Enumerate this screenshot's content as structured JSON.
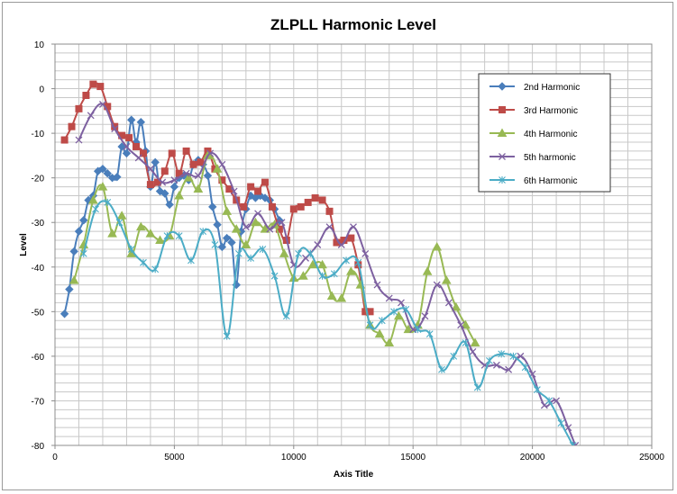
{
  "chart_data": {
    "type": "line",
    "title": "ZLPLL Harmonic Level",
    "xlabel": "Axis Title",
    "ylabel": "Level",
    "xlim": [
      0,
      25000
    ],
    "ylim": [
      -80,
      10
    ],
    "xticks": [
      0,
      5000,
      10000,
      15000,
      20000,
      25000
    ],
    "yticks": [
      10,
      0,
      -10,
      -20,
      -30,
      -40,
      -50,
      -60,
      -70,
      -80
    ],
    "grid": true,
    "smoothed": true,
    "legend_position": "top-right",
    "series": [
      {
        "name": "2nd Harmonic",
        "color": "#4a7ebb",
        "marker": "diamond",
        "x": [
          400,
          600,
          800,
          1000,
          1200,
          1400,
          1600,
          1800,
          2000,
          2200,
          2400,
          2600,
          2800,
          3000,
          3200,
          3400,
          3600,
          3800,
          4000,
          4200,
          4400,
          4600,
          4800,
          5000,
          5200,
          5400,
          5600,
          5800,
          6000,
          6200,
          6400,
          6600,
          6800,
          7000,
          7200,
          7400,
          7600,
          7800,
          8000,
          8200,
          8400,
          8600,
          8800,
          9000,
          9200,
          9400
        ],
        "y": [
          -50.5,
          -45,
          -36.5,
          -32,
          -29.5,
          -25,
          -24,
          -18.5,
          -18,
          -19,
          -20,
          -19.8,
          -13,
          -14.5,
          -7,
          -12,
          -7.5,
          -14,
          -22,
          -16.5,
          -23,
          -23.5,
          -26,
          -22,
          -20,
          -19.5,
          -20.5,
          -17,
          -16,
          -17,
          -19.5,
          -26.5,
          -30.5,
          -35.5,
          -33.5,
          -34.5,
          -44,
          -32,
          -27,
          -24,
          -24.5,
          -24,
          -24.5,
          -25,
          -27,
          -29.5
        ]
      },
      {
        "name": "3rd Harmonic",
        "color": "#be4b48",
        "marker": "square",
        "x": [
          400,
          700,
          1000,
          1300,
          1600,
          1900,
          2200,
          2500,
          2800,
          3100,
          3400,
          3700,
          4000,
          4300,
          4600,
          4900,
          5200,
          5500,
          5800,
          6100,
          6400,
          6700,
          7000,
          7300,
          7600,
          7900,
          8200,
          8500,
          8800,
          9100,
          9400,
          9700,
          10000,
          10300,
          10600,
          10900,
          11200,
          11500,
          11800,
          12100,
          12400,
          12700,
          13000,
          13200
        ],
        "y": [
          -11.5,
          -8.5,
          -4.5,
          -1.5,
          1,
          0.5,
          -4,
          -8.5,
          -10.5,
          -11,
          -13,
          -14.5,
          -21.5,
          -21,
          -18.5,
          -14.5,
          -19,
          -14,
          -17,
          -16.5,
          -14,
          -18,
          -20.5,
          -22.5,
          -25,
          -26.5,
          -22,
          -23,
          -21,
          -26.5,
          -31.5,
          -34,
          -27,
          -26.5,
          -25.5,
          -24.5,
          -25,
          -27.5,
          -34.5,
          -34,
          -33.5,
          -39.5,
          -50,
          -50
        ]
      },
      {
        "name": "4th Harmonic",
        "color": "#98b954",
        "marker": "triangle",
        "x": [
          800,
          1200,
          1600,
          2000,
          2400,
          2800,
          3200,
          3600,
          4000,
          4400,
          4800,
          5200,
          5600,
          6000,
          6400,
          6800,
          7200,
          7600,
          8000,
          8400,
          8800,
          9200,
          9600,
          10000,
          10400,
          10800,
          11200,
          11600,
          12000,
          12400,
          12800,
          13200,
          13600,
          14000,
          14400,
          14800,
          15200,
          15600,
          16000,
          16400,
          16800,
          17200,
          17600
        ],
        "y": [
          -43,
          -35,
          -25,
          -22,
          -32.5,
          -28.5,
          -37,
          -31,
          -32.5,
          -34,
          -33,
          -24,
          -20,
          -22.5,
          -15,
          -18,
          -27.5,
          -31.5,
          -35,
          -30,
          -31.5,
          -30.5,
          -37,
          -42.5,
          -42,
          -39.5,
          -39.5,
          -46.5,
          -47,
          -41,
          -44,
          -53,
          -55,
          -57,
          -51,
          -54,
          -53,
          -41,
          -35.5,
          -43,
          -49,
          -53,
          -57
        ]
      },
      {
        "name": "5th harmonic",
        "color": "#7d60a0",
        "marker": "x",
        "x": [
          1000,
          1500,
          2000,
          2500,
          3000,
          3500,
          4000,
          4500,
          5000,
          5500,
          6000,
          6500,
          7000,
          7500,
          8000,
          8500,
          9000,
          9500,
          10000,
          10500,
          11000,
          11500,
          12000,
          12500,
          13000,
          13500,
          14000,
          14500,
          15000,
          15500,
          16000,
          16500,
          17000,
          17500,
          18000,
          18500,
          19000,
          19500,
          20000,
          20500,
          21000,
          21500,
          21800
        ],
        "y": [
          -11.5,
          -6,
          -3.5,
          -9,
          -13,
          -15.5,
          -18,
          -21,
          -20.5,
          -19,
          -19.5,
          -14.5,
          -17,
          -23,
          -31,
          -28,
          -31.5,
          -30,
          -39.5,
          -38,
          -35,
          -31,
          -35,
          -31,
          -37,
          -44,
          -47,
          -48,
          -54,
          -51,
          -44,
          -48,
          -53,
          -59,
          -62,
          -62,
          -63,
          -60,
          -64,
          -71,
          -70,
          -76,
          -80
        ]
      },
      {
        "name": "6th Harmonic",
        "color": "#4bacc6",
        "marker": "asterisk",
        "x": [
          1200,
          1700,
          2200,
          2700,
          3200,
          3700,
          4200,
          4700,
          5200,
          5700,
          6200,
          6700,
          7200,
          7700,
          8200,
          8700,
          9200,
          9700,
          10200,
          10700,
          11200,
          11700,
          12200,
          12700,
          13200,
          13700,
          14200,
          14700,
          15200,
          15700,
          16200,
          16700,
          17200,
          17700,
          18200,
          18700,
          19200,
          19700,
          20200,
          20700,
          21200,
          21700
        ],
        "y": [
          -37,
          -27,
          -25.5,
          -30,
          -36,
          -39,
          -40.5,
          -33,
          -33,
          -38.5,
          -32,
          -35,
          -55.5,
          -37,
          -38,
          -36,
          -42,
          -51,
          -37,
          -37,
          -42,
          -41.5,
          -38.5,
          -39,
          -53,
          -52,
          -50,
          -49.5,
          -54,
          -55,
          -63,
          -60,
          -57,
          -67,
          -61,
          -59.5,
          -60,
          -62.5,
          -67.5,
          -70,
          -75,
          -80
        ]
      }
    ]
  }
}
